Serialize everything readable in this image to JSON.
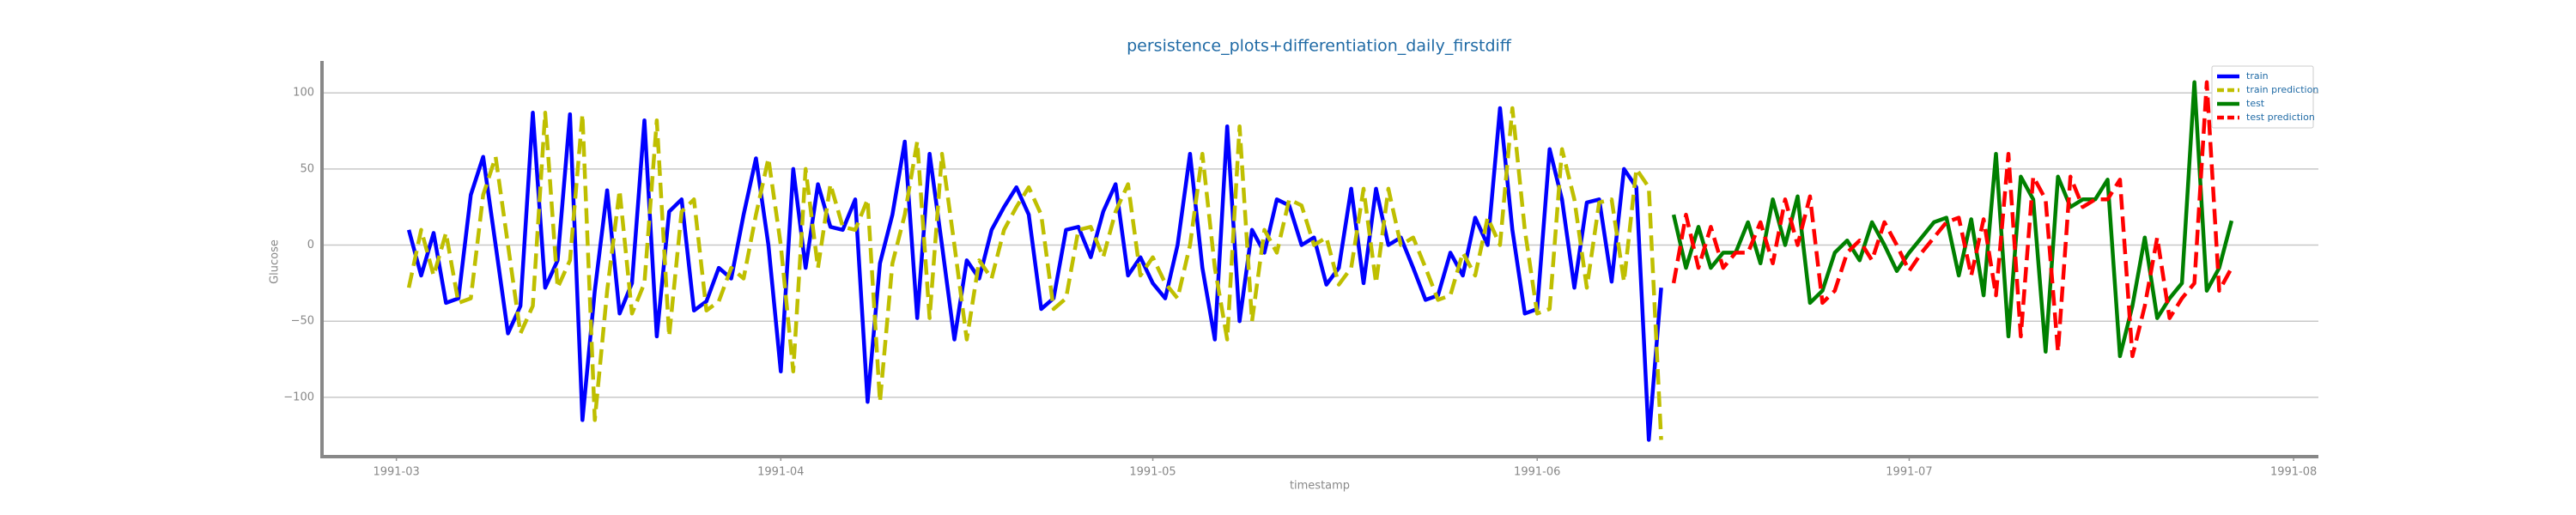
{
  "chart_data": {
    "type": "line",
    "title": "persistence_plots+differentiation_daily_firstdiff",
    "xlabel": "timestamp",
    "ylabel": "Glucose",
    "x": [
      "1991-03-02",
      "1991-03-03",
      "1991-03-04",
      "1991-03-05",
      "1991-03-06",
      "1991-03-07",
      "1991-03-08",
      "1991-03-09",
      "1991-03-10",
      "1991-03-11",
      "1991-03-12",
      "1991-03-13",
      "1991-03-14",
      "1991-03-15",
      "1991-03-16",
      "1991-03-17",
      "1991-03-18",
      "1991-03-19",
      "1991-03-20",
      "1991-03-21",
      "1991-03-22",
      "1991-03-23",
      "1991-03-24",
      "1991-03-25",
      "1991-03-26",
      "1991-03-27",
      "1991-03-28",
      "1991-03-29",
      "1991-03-30",
      "1991-03-31",
      "1991-04-01",
      "1991-04-02",
      "1991-04-03",
      "1991-04-04",
      "1991-04-05",
      "1991-04-06",
      "1991-04-07",
      "1991-04-08",
      "1991-04-09",
      "1991-04-10",
      "1991-04-11",
      "1991-04-12",
      "1991-04-13",
      "1991-04-14",
      "1991-04-15",
      "1991-04-16",
      "1991-04-17",
      "1991-04-18",
      "1991-04-19",
      "1991-04-20",
      "1991-04-21",
      "1991-04-22",
      "1991-04-23",
      "1991-04-24",
      "1991-04-25",
      "1991-04-26",
      "1991-04-27",
      "1991-04-28",
      "1991-04-29",
      "1991-04-30",
      "1991-05-01",
      "1991-05-02",
      "1991-05-03",
      "1991-05-04",
      "1991-05-05",
      "1991-05-06",
      "1991-05-07",
      "1991-05-08",
      "1991-05-09",
      "1991-05-10",
      "1991-05-11",
      "1991-05-12",
      "1991-05-13",
      "1991-05-14",
      "1991-05-15",
      "1991-05-16",
      "1991-05-17",
      "1991-05-18",
      "1991-05-19",
      "1991-05-20",
      "1991-05-21",
      "1991-05-22",
      "1991-05-23",
      "1991-05-24",
      "1991-05-25",
      "1991-05-26",
      "1991-05-27",
      "1991-05-28",
      "1991-05-29",
      "1991-05-30",
      "1991-05-31",
      "1991-06-01",
      "1991-06-02",
      "1991-06-03",
      "1991-06-04",
      "1991-06-05",
      "1991-06-06",
      "1991-06-07",
      "1991-06-08",
      "1991-06-09",
      "1991-06-10",
      "1991-06-11",
      "1991-06-12",
      "1991-06-13",
      "1991-06-14",
      "1991-06-15",
      "1991-06-16",
      "1991-06-17",
      "1991-06-18",
      "1991-06-19",
      "1991-06-20",
      "1991-06-21",
      "1991-06-22",
      "1991-06-23",
      "1991-06-24",
      "1991-06-25",
      "1991-06-26",
      "1991-06-27",
      "1991-06-28",
      "1991-06-29",
      "1991-06-30",
      "1991-07-01",
      "1991-07-02",
      "1991-07-03",
      "1991-07-04",
      "1991-07-05",
      "1991-07-06",
      "1991-07-07",
      "1991-07-08",
      "1991-07-09",
      "1991-07-10",
      "1991-07-11",
      "1991-07-12",
      "1991-07-13",
      "1991-07-14",
      "1991-07-15",
      "1991-07-16",
      "1991-07-17",
      "1991-07-18",
      "1991-07-19",
      "1991-07-20",
      "1991-07-21",
      "1991-07-22",
      "1991-07-23",
      "1991-07-24",
      "1991-07-25",
      "1991-07-26",
      "1991-07-27"
    ],
    "series": [
      {
        "name": "train",
        "color": "#0000ff",
        "linestyle": "solid",
        "values": [
          10,
          -20,
          8,
          -38,
          -35,
          33,
          58,
          0,
          -58,
          -40,
          87,
          -28,
          -10,
          86,
          -115,
          -30,
          36,
          -45,
          -25,
          82,
          -60,
          22,
          30,
          -43,
          -37,
          -15,
          -22,
          20,
          57,
          0,
          -83,
          50,
          -15,
          40,
          12,
          10,
          30,
          -103,
          -12,
          20,
          68,
          -48,
          60,
          0,
          -62,
          -10,
          -22,
          10,
          25,
          38,
          20,
          -42,
          -35,
          10,
          12,
          -8,
          22,
          40,
          -20,
          -8,
          -25,
          -35,
          0,
          60,
          -15,
          -62,
          78,
          -50,
          10,
          -5,
          30,
          26,
          0,
          5,
          -26,
          -15,
          37,
          -25,
          37,
          0,
          5,
          -15,
          -36,
          -33,
          -5,
          -20,
          18,
          0,
          90,
          10,
          -45,
          -42,
          63,
          30,
          -28,
          28,
          30,
          -24,
          50,
          38,
          -128,
          -28,
          null,
          null,
          null,
          null,
          null,
          null,
          null,
          null,
          null,
          null,
          null,
          null,
          null,
          null,
          null,
          null,
          null,
          null,
          null,
          null,
          null,
          null,
          null,
          null,
          null,
          null,
          null,
          null,
          null,
          null,
          null,
          null,
          null,
          null,
          null,
          null,
          null,
          null,
          null,
          null,
          null,
          null,
          null,
          null,
          null,
          null
        ]
      },
      {
        "name": "train prediction",
        "color": "#bfbf00",
        "linestyle": "dashed",
        "values": [
          -28,
          10,
          -20,
          8,
          -38,
          -35,
          33,
          58,
          0,
          -58,
          -40,
          87,
          -28,
          -10,
          86,
          -115,
          -30,
          36,
          -45,
          -25,
          82,
          -60,
          22,
          30,
          -43,
          -37,
          -15,
          -22,
          20,
          57,
          0,
          -83,
          50,
          -15,
          40,
          12,
          10,
          30,
          -103,
          -12,
          20,
          68,
          -48,
          60,
          0,
          -62,
          -10,
          -22,
          10,
          25,
          38,
          20,
          -42,
          -35,
          10,
          12,
          -8,
          22,
          40,
          -20,
          -8,
          -25,
          -35,
          0,
          60,
          -15,
          -62,
          78,
          -50,
          10,
          -5,
          30,
          26,
          0,
          5,
          -26,
          -15,
          37,
          -25,
          37,
          0,
          5,
          -15,
          -36,
          -33,
          -5,
          -20,
          18,
          0,
          90,
          10,
          -45,
          -42,
          63,
          30,
          -28,
          28,
          30,
          -24,
          50,
          38,
          -128,
          null,
          null,
          null,
          null,
          null,
          null,
          null,
          null,
          null,
          null,
          null,
          null,
          null,
          null,
          null,
          null,
          null,
          null,
          null,
          null,
          null,
          null,
          null,
          null,
          null,
          null,
          null,
          null,
          null,
          null,
          null,
          null,
          null,
          null,
          null,
          null,
          null,
          null,
          null,
          null,
          null,
          null,
          null,
          null,
          null,
          null
        ]
      },
      {
        "name": "test",
        "color": "#008000",
        "linestyle": "solid",
        "values": [
          null,
          null,
          null,
          null,
          null,
          null,
          null,
          null,
          null,
          null,
          null,
          null,
          null,
          null,
          null,
          null,
          null,
          null,
          null,
          null,
          null,
          null,
          null,
          null,
          null,
          null,
          null,
          null,
          null,
          null,
          null,
          null,
          null,
          null,
          null,
          null,
          null,
          null,
          null,
          null,
          null,
          null,
          null,
          null,
          null,
          null,
          null,
          null,
          null,
          null,
          null,
          null,
          null,
          null,
          null,
          null,
          null,
          null,
          null,
          null,
          null,
          null,
          null,
          null,
          null,
          null,
          null,
          null,
          null,
          null,
          null,
          null,
          null,
          null,
          null,
          null,
          null,
          null,
          null,
          null,
          null,
          null,
          null,
          null,
          null,
          null,
          null,
          null,
          null,
          null,
          null,
          null,
          null,
          null,
          null,
          null,
          null,
          null,
          null,
          null,
          null,
          null,
          20,
          -15,
          12,
          -15,
          -5,
          -5,
          15,
          -12,
          30,
          0,
          32,
          -38,
          -30,
          -5,
          3,
          -10,
          15,
          0,
          -17,
          -5,
          5,
          15,
          18,
          -20,
          17,
          -33,
          60,
          -60,
          45,
          30,
          -70,
          45,
          25,
          30,
          30,
          43,
          -73,
          -40,
          5,
          -48,
          -35,
          -25,
          107,
          -30,
          -15,
          16
        ]
      },
      {
        "name": "test prediction",
        "color": "#ff0000",
        "linestyle": "dashed",
        "values": [
          null,
          null,
          null,
          null,
          null,
          null,
          null,
          null,
          null,
          null,
          null,
          null,
          null,
          null,
          null,
          null,
          null,
          null,
          null,
          null,
          null,
          null,
          null,
          null,
          null,
          null,
          null,
          null,
          null,
          null,
          null,
          null,
          null,
          null,
          null,
          null,
          null,
          null,
          null,
          null,
          null,
          null,
          null,
          null,
          null,
          null,
          null,
          null,
          null,
          null,
          null,
          null,
          null,
          null,
          null,
          null,
          null,
          null,
          null,
          null,
          null,
          null,
          null,
          null,
          null,
          null,
          null,
          null,
          null,
          null,
          null,
          null,
          null,
          null,
          null,
          null,
          null,
          null,
          null,
          null,
          null,
          null,
          null,
          null,
          null,
          null,
          null,
          null,
          null,
          null,
          null,
          null,
          null,
          null,
          null,
          null,
          null,
          null,
          null,
          null,
          null,
          null,
          -25,
          20,
          -15,
          12,
          -15,
          -5,
          -5,
          15,
          -12,
          30,
          0,
          32,
          -38,
          -30,
          -5,
          3,
          -10,
          15,
          0,
          -17,
          -5,
          5,
          15,
          18,
          -20,
          17,
          -33,
          60,
          -60,
          45,
          30,
          -70,
          45,
          25,
          30,
          30,
          43,
          -73,
          -40,
          5,
          -48,
          -35,
          -25,
          107,
          -30,
          -15
        ]
      }
    ],
    "xlim": [
      "1991-02-23",
      "1991-08-03"
    ],
    "xticks": [
      "1991-03",
      "1991-04",
      "1991-05",
      "1991-06",
      "1991-07",
      "1991-08"
    ],
    "ylim": [
      -139,
      121
    ],
    "yticks": [
      {
        "value": -100,
        "label": "−100"
      },
      {
        "value": -50,
        "label": "−50"
      },
      0,
      50,
      100
    ],
    "grid": true,
    "legend": "upper right"
  }
}
